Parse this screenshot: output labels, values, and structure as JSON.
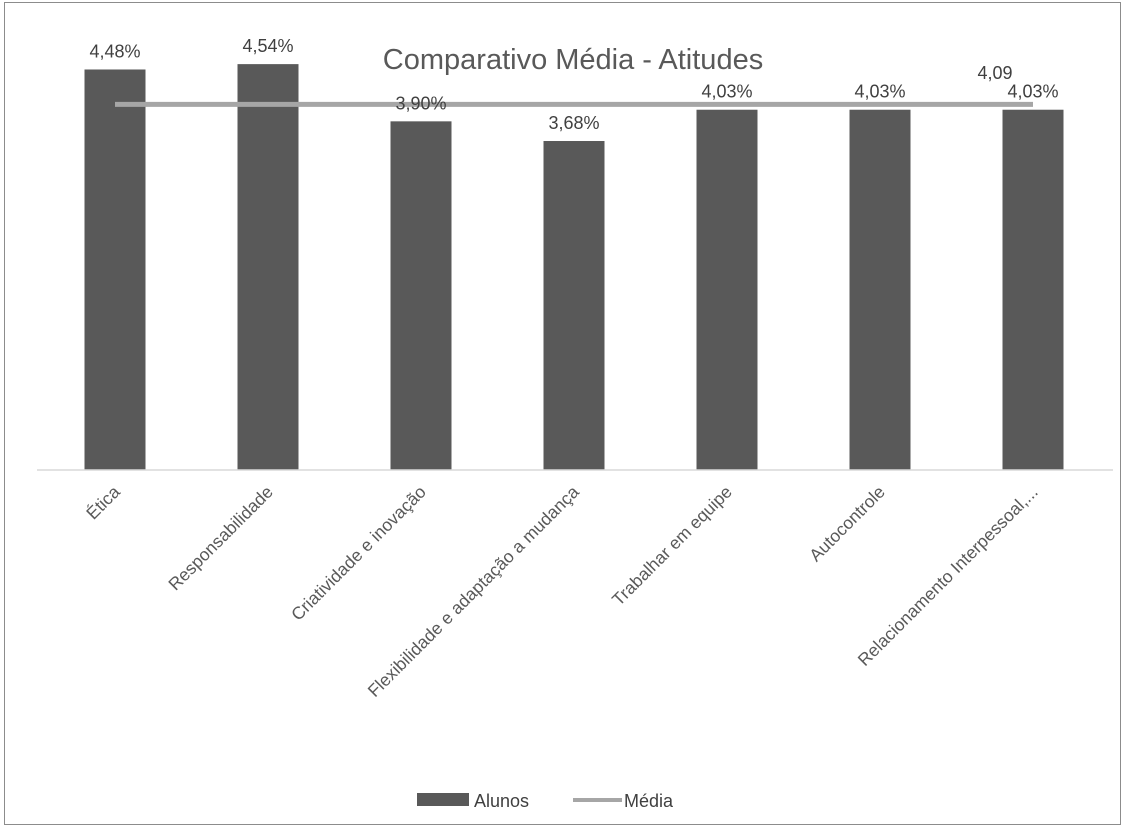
{
  "chart_data": {
    "type": "bar",
    "title": "Comparativo Média - Atitudes",
    "categories": [
      "Ética",
      "Responsabilidade",
      "Criatividade e inovação",
      "Flexibilidade e adaptação a mudança",
      "Trabalhar em equipe",
      "Autocontrole",
      "Relacionamento Interpessoal,..."
    ],
    "series": [
      {
        "name": "Alunos",
        "type": "bar",
        "color": "#595959",
        "values": [
          4.48,
          4.54,
          3.9,
          3.68,
          4.03,
          4.03,
          4.03
        ],
        "labels": [
          "4,48%",
          "4,54%",
          "3,90%",
          "3,68%",
          "4,03%",
          "4,03%",
          "4,03%"
        ]
      },
      {
        "name": "Média",
        "type": "line",
        "color": "#a6a6a6",
        "values": [
          4.09,
          4.09,
          4.09,
          4.09,
          4.09,
          4.09,
          4.09
        ],
        "end_label": "4,09"
      }
    ],
    "ylim": [
      0,
      5
    ],
    "grid": false,
    "legend_position": "bottom"
  }
}
